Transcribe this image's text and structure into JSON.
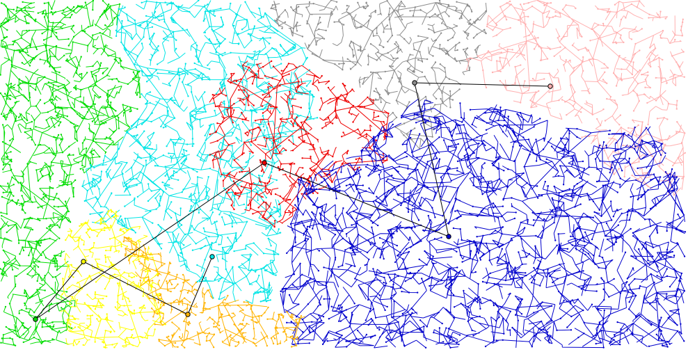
{
  "diagram": {
    "background": "#ffffff",
    "link_color": "#000000",
    "hub_fill_color": "#2e5d2e",
    "clusters": [
      {
        "name": "green",
        "color": "#00dd00",
        "density": "high"
      },
      {
        "name": "cyan",
        "color": "#00e5e5",
        "density": "high"
      },
      {
        "name": "gray",
        "color": "#8c8c8c",
        "density": "medium"
      },
      {
        "name": "pink",
        "color": "#ffb0b0",
        "density": "medium"
      },
      {
        "name": "red",
        "color": "#ee0000",
        "density": "medium"
      },
      {
        "name": "blue",
        "color": "#0000cc",
        "density": "very-high"
      },
      {
        "name": "yellow",
        "color": "#ffff00",
        "density": "medium"
      },
      {
        "name": "orange",
        "color": "#ffb300",
        "density": "medium"
      }
    ],
    "hubs": [
      {
        "id": "green-hub",
        "cluster": "green"
      },
      {
        "id": "yellow-hub",
        "cluster": "yellow"
      },
      {
        "id": "orange-hub",
        "cluster": "orange"
      },
      {
        "id": "cyan-hub",
        "cluster": "cyan"
      },
      {
        "id": "red-hub",
        "cluster": "red"
      },
      {
        "id": "blue-hub",
        "cluster": "blue"
      },
      {
        "id": "gray-hub",
        "cluster": "gray"
      },
      {
        "id": "pink-hub",
        "cluster": "pink"
      }
    ],
    "links": [
      {
        "from": "green-hub",
        "to": "yellow-hub"
      },
      {
        "from": "yellow-hub",
        "to": "orange-hub"
      },
      {
        "from": "orange-hub",
        "to": "cyan-hub"
      },
      {
        "from": "green-hub",
        "to": "red-hub"
      },
      {
        "from": "red-hub",
        "to": "blue-hub"
      },
      {
        "from": "blue-hub",
        "to": "gray-hub"
      },
      {
        "from": "gray-hub",
        "to": "pink-hub"
      }
    ]
  }
}
